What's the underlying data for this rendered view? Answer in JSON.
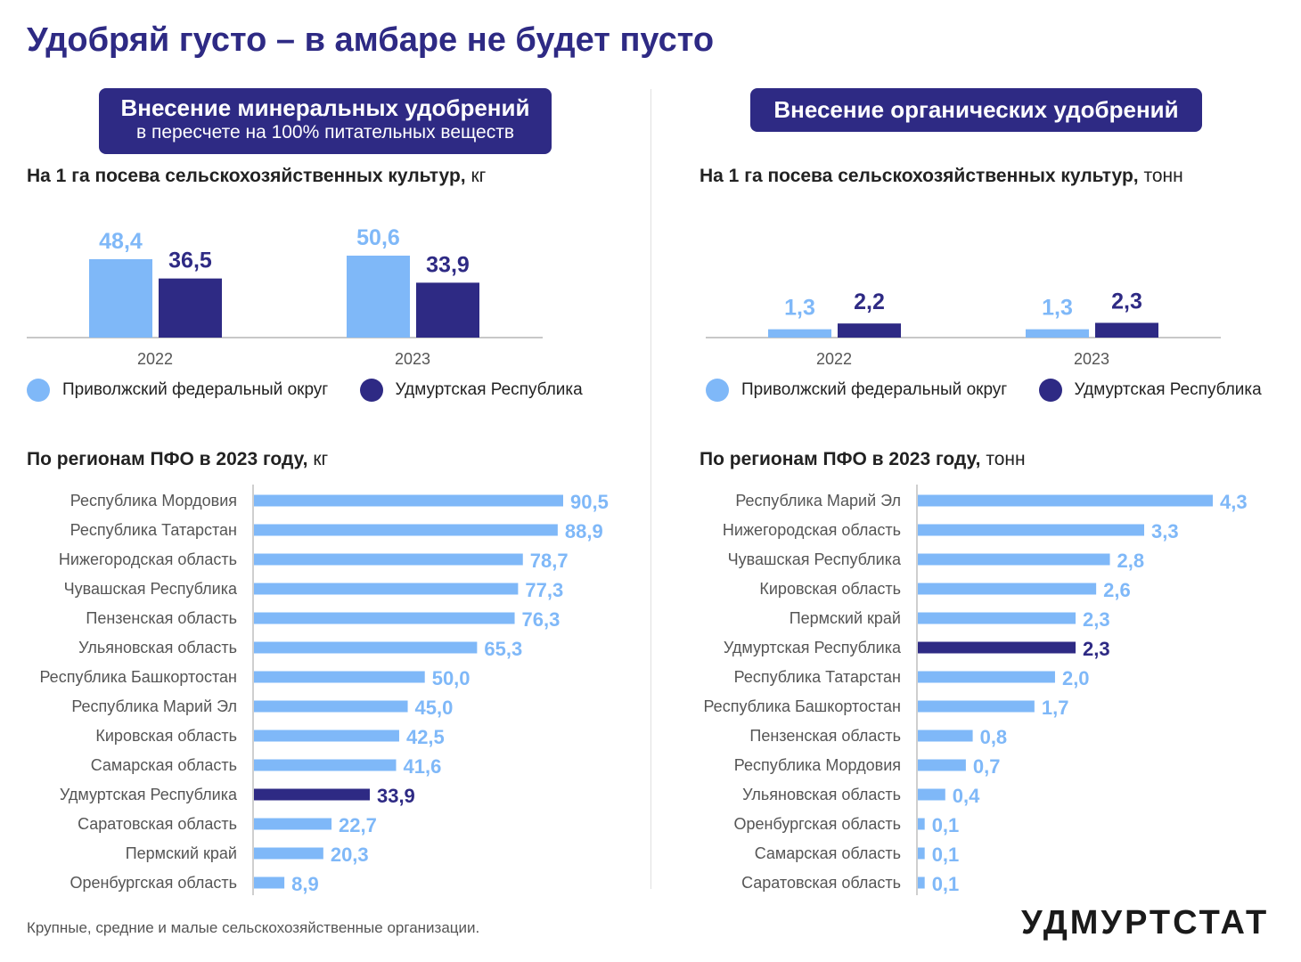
{
  "title": "Удобряй густо – в амбаре не будет пусто",
  "colors": {
    "district": "#7fb8f8",
    "udmurtia": "#2e2a84",
    "badge": "#2e2a84"
  },
  "mineral": {
    "badge_line1": "Внесение минеральных удобрений",
    "badge_line2": "в пересчете на 100% питательных веществ",
    "per_ha_label": "На 1 га посева сельскохозяйственных культур,",
    "per_ha_unit": " кг",
    "regions_label": "По регионам ПФО в 2023 году,",
    "regions_unit": " кг"
  },
  "organic": {
    "badge_line1": "Внесение органических удобрений",
    "per_ha_label": "На 1 га посева сельскохозяйственных культур,",
    "per_ha_unit": " тонн",
    "regions_label": "По регионам ПФО в 2023 году,",
    "regions_unit": " тонн"
  },
  "legend": {
    "district": "Приволжский федеральный округ",
    "udmurtia": "Удмуртская Республика"
  },
  "chart_data": [
    {
      "type": "bar",
      "categories": [
        "2022",
        "2023"
      ],
      "series": [
        {
          "name": "Приволжский федеральный округ",
          "values": [
            48.4,
            50.6
          ],
          "labels": [
            "48,4",
            "50,6"
          ]
        },
        {
          "name": "Удмуртская Республика",
          "values": [
            36.5,
            33.9
          ],
          "labels": [
            "36,5",
            "33,9"
          ]
        }
      ],
      "ylim": [
        0,
        55
      ]
    },
    {
      "type": "bar",
      "categories": [
        "2022",
        "2023"
      ],
      "series": [
        {
          "name": "Приволжский федеральный округ",
          "values": [
            1.3,
            1.3
          ],
          "labels": [
            "1,3",
            "1,3"
          ]
        },
        {
          "name": "Удмуртская Республика",
          "values": [
            2.2,
            2.3
          ],
          "labels": [
            "2,2",
            "2,3"
          ]
        }
      ],
      "ylim": [
        0,
        10
      ]
    },
    {
      "type": "bar",
      "orientation": "horizontal",
      "categories": [
        "Республика Мордовия",
        "Республика Татарстан",
        "Нижегородская область",
        "Чувашская Республика",
        "Пензенская область",
        "Ульяновская область",
        "Республика Башкортостан",
        "Республика Марий Эл",
        "Кировская область",
        "Самарская область",
        "Удмуртская Республика",
        "Саратовская область",
        "Пермский край",
        "Оренбургская область"
      ],
      "values": [
        90.5,
        88.9,
        78.7,
        77.3,
        76.3,
        65.3,
        50.0,
        45.0,
        42.5,
        41.6,
        33.9,
        22.7,
        20.3,
        8.9
      ],
      "labels": [
        "90,5",
        "88,9",
        "78,7",
        "77,3",
        "76,3",
        "65,3",
        "50,0",
        "45,0",
        "42,5",
        "41,6",
        "33,9",
        "22,7",
        "20,3",
        "8,9"
      ],
      "highlight": "Удмуртская Республика",
      "xlim": [
        0,
        90.5
      ]
    },
    {
      "type": "bar",
      "orientation": "horizontal",
      "categories": [
        "Республика Марий Эл",
        "Нижегородская область",
        "Чувашская Республика",
        "Кировская область",
        "Пермский край",
        "Удмуртская Республика",
        "Республика Татарстан",
        "Республика Башкортостан",
        "Пензенская область",
        "Республика Мордовия",
        "Ульяновская область",
        "Оренбургская область",
        "Самарская область",
        "Саратовская область"
      ],
      "values": [
        4.3,
        3.3,
        2.8,
        2.6,
        2.3,
        2.3,
        2.0,
        1.7,
        0.8,
        0.7,
        0.4,
        0.1,
        0.1,
        0.1
      ],
      "labels": [
        "4,3",
        "3,3",
        "2,8",
        "2,6",
        "2,3",
        "2,3",
        "2,0",
        "1,7",
        "0,8",
        "0,7",
        "0,4",
        "0,1",
        "0,1",
        "0,1"
      ],
      "highlight": "Удмуртская Республика",
      "xlim": [
        0,
        4.3
      ]
    }
  ],
  "footnote": "Крупные, средние и малые сельскохозяйственные организации.",
  "logo": "УДМУРТСТАТ"
}
